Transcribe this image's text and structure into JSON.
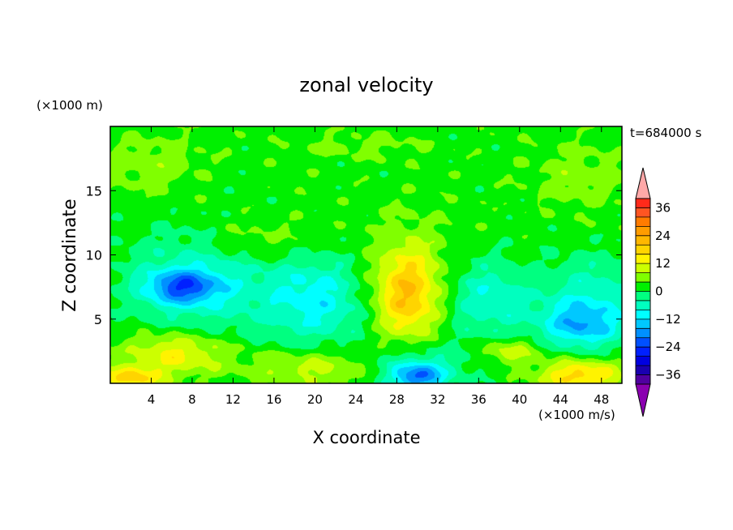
{
  "chart_data": {
    "type": "heatmap",
    "title": "zonal velocity",
    "xlabel": "X coordinate",
    "ylabel": "Z coordinate",
    "x_unit": "(×1000 m/s)",
    "y_unit": "(×1000 m)",
    "time_label": "t=684000 s",
    "xlim": [
      0,
      50
    ],
    "ylim": [
      0,
      20
    ],
    "x_ticks": [
      4,
      8,
      12,
      16,
      20,
      24,
      28,
      32,
      36,
      40,
      44,
      48
    ],
    "y_ticks": [
      5,
      10,
      15
    ],
    "colorbar": {
      "ticks": [
        36,
        24,
        12,
        0,
        -12,
        -24,
        -36
      ],
      "range": [
        -40,
        40
      ],
      "step": 4,
      "bins": [
        {
          "upper": 40,
          "color": "#ff2a1a"
        },
        {
          "upper": 36,
          "color": "#ff5522"
        },
        {
          "upper": 32,
          "color": "#ff7b00"
        },
        {
          "upper": 28,
          "color": "#ff9c00"
        },
        {
          "upper": 24,
          "color": "#ffb700"
        },
        {
          "upper": 20,
          "color": "#ffd400"
        },
        {
          "upper": 16,
          "color": "#fff300"
        },
        {
          "upper": 12,
          "color": "#ccff00"
        },
        {
          "upper": 8,
          "color": "#80ff00"
        },
        {
          "upper": 4,
          "color": "#00f000"
        },
        {
          "upper": 0,
          "color": "#00ff80"
        },
        {
          "upper": -4,
          "color": "#00ffbf"
        },
        {
          "upper": -8,
          "color": "#00ffff"
        },
        {
          "upper": -12,
          "color": "#00c8ff"
        },
        {
          "upper": -16,
          "color": "#0090ff"
        },
        {
          "upper": -20,
          "color": "#0050ff"
        },
        {
          "upper": -24,
          "color": "#0020ff"
        },
        {
          "upper": -28,
          "color": "#0000e0"
        },
        {
          "upper": -32,
          "color": "#1a00b0"
        },
        {
          "upper": -36,
          "color": "#5000a0"
        }
      ],
      "over_color": "#ffa8a8",
      "under_color": "#8a00b0"
    },
    "features": [
      {
        "x": 7,
        "z": 7.5,
        "value": -18,
        "sx": 3.5,
        "sz": 1.3
      },
      {
        "x": 9,
        "z": 8,
        "value": -10,
        "sx": 7,
        "sz": 4
      },
      {
        "x": 20,
        "z": 6.5,
        "value": -12,
        "sx": 5,
        "sz": 3.5
      },
      {
        "x": 37,
        "z": 6.5,
        "value": -10,
        "sx": 4,
        "sz": 3
      },
      {
        "x": 46,
        "z": 4.5,
        "value": -15,
        "sx": 4,
        "sz": 1.8
      },
      {
        "x": 47,
        "z": 7,
        "value": -8,
        "sx": 5,
        "sz": 3
      },
      {
        "x": 29,
        "z": 6.5,
        "value": 13,
        "sx": 3,
        "sz": 3.2
      },
      {
        "x": 29,
        "z": 8.5,
        "value": 7,
        "sx": 4,
        "sz": 4
      },
      {
        "x": 6.5,
        "z": 2.3,
        "value": 12,
        "sx": 5,
        "sz": 1.6
      },
      {
        "x": 20,
        "z": 1.2,
        "value": 8,
        "sx": 6,
        "sz": 1.5
      },
      {
        "x": 30,
        "z": 0.5,
        "value": -18,
        "sx": 2.5,
        "sz": 1
      },
      {
        "x": 30,
        "z": 1.3,
        "value": -8,
        "sx": 5,
        "sz": 1.8
      },
      {
        "x": 46,
        "z": 0.6,
        "value": 16,
        "sx": 4,
        "sz": 1.2
      },
      {
        "x": 2,
        "z": 0.4,
        "value": 15,
        "sx": 3,
        "sz": 0.9
      },
      {
        "x": 39,
        "z": 2.5,
        "value": 9,
        "sx": 3,
        "sz": 1
      },
      {
        "x": 14,
        "z": 11,
        "value": 5,
        "sx": 6,
        "sz": 2
      },
      {
        "x": 4,
        "z": 17,
        "value": 4,
        "sx": 5,
        "sz": 2.5
      },
      {
        "x": 46,
        "z": 16,
        "value": 4,
        "sx": 5,
        "sz": 2.5
      },
      {
        "x": 25,
        "z": 18.5,
        "value": 3,
        "sx": 6,
        "sz": 1
      }
    ]
  }
}
